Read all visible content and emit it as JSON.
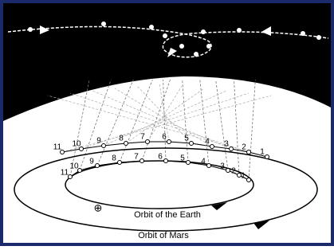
{
  "labels": {
    "earth_orbit": "Orbit of the Earth",
    "mars_orbit": "Orbit of Mars",
    "earth_symbol": "⊕"
  },
  "mars_positions": [
    "1",
    "2",
    "3",
    "4",
    "5",
    "6",
    "7",
    "8",
    "9",
    "10",
    "11"
  ],
  "earth_positions": [
    "1",
    "2",
    "3",
    "4",
    "5",
    "6",
    "7",
    "8",
    "9",
    "10",
    "11"
  ]
}
